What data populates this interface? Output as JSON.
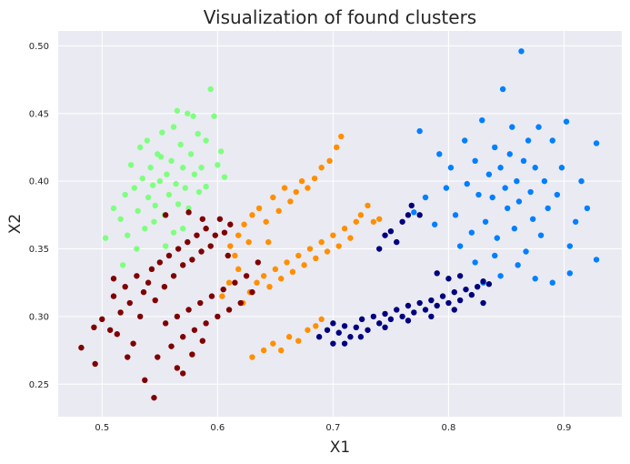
{
  "chart_data": {
    "type": "scatter",
    "title": "Visualization of found clusters",
    "xlabel": "X1",
    "ylabel": "X2",
    "xlim": [
      0.462,
      0.95
    ],
    "ylim": [
      0.226,
      0.511
    ],
    "xticks": [
      0.5,
      0.6,
      0.7,
      0.8,
      0.9
    ],
    "yticks": [
      0.25,
      0.3,
      0.35,
      0.4,
      0.45,
      0.5
    ],
    "grid": true,
    "background": "#eaeaf2",
    "grid_color": "#ffffff",
    "series": [
      {
        "color": "#7fff7f",
        "points": [
          [
            0.503,
            0.358
          ],
          [
            0.51,
            0.38
          ],
          [
            0.516,
            0.372
          ],
          [
            0.52,
            0.39
          ],
          [
            0.522,
            0.36
          ],
          [
            0.525,
            0.412
          ],
          [
            0.528,
            0.395
          ],
          [
            0.531,
            0.378
          ],
          [
            0.533,
            0.425
          ],
          [
            0.535,
            0.402
          ],
          [
            0.537,
            0.365
          ],
          [
            0.54,
            0.388
          ],
          [
            0.542,
            0.41
          ],
          [
            0.544,
            0.397
          ],
          [
            0.546,
            0.382
          ],
          [
            0.548,
            0.42
          ],
          [
            0.55,
            0.4
          ],
          [
            0.552,
            0.436
          ],
          [
            0.554,
            0.375
          ],
          [
            0.556,
            0.405
          ],
          [
            0.558,
            0.39
          ],
          [
            0.56,
            0.415
          ],
          [
            0.562,
            0.44
          ],
          [
            0.564,
            0.398
          ],
          [
            0.566,
            0.383
          ],
          [
            0.568,
            0.427
          ],
          [
            0.57,
            0.41
          ],
          [
            0.572,
            0.395
          ],
          [
            0.574,
            0.45
          ],
          [
            0.577,
            0.42
          ],
          [
            0.58,
            0.405
          ],
          [
            0.583,
            0.435
          ],
          [
            0.586,
            0.41
          ],
          [
            0.59,
            0.43
          ],
          [
            0.594,
            0.468
          ],
          [
            0.597,
            0.448
          ],
          [
            0.6,
            0.412
          ],
          [
            0.603,
            0.422
          ],
          [
            0.606,
            0.403
          ],
          [
            0.53,
            0.35
          ],
          [
            0.518,
            0.338
          ],
          [
            0.545,
            0.37
          ],
          [
            0.562,
            0.362
          ],
          [
            0.575,
            0.38
          ],
          [
            0.59,
            0.396
          ],
          [
            0.539,
            0.43
          ],
          [
            0.551,
            0.418
          ],
          [
            0.565,
            0.452
          ],
          [
            0.579,
            0.448
          ],
          [
            0.584,
            0.392
          ],
          [
            0.57,
            0.365
          ],
          [
            0.555,
            0.352
          ]
        ]
      },
      {
        "color": "#007fff",
        "points": [
          [
            0.78,
            0.388
          ],
          [
            0.788,
            0.368
          ],
          [
            0.792,
            0.42
          ],
          [
            0.798,
            0.395
          ],
          [
            0.802,
            0.41
          ],
          [
            0.806,
            0.375
          ],
          [
            0.81,
            0.352
          ],
          [
            0.814,
            0.43
          ],
          [
            0.816,
            0.398
          ],
          [
            0.82,
            0.362
          ],
          [
            0.823,
            0.415
          ],
          [
            0.826,
            0.39
          ],
          [
            0.829,
            0.445
          ],
          [
            0.832,
            0.37
          ],
          [
            0.835,
            0.405
          ],
          [
            0.838,
            0.388
          ],
          [
            0.84,
            0.425
          ],
          [
            0.842,
            0.358
          ],
          [
            0.845,
            0.41
          ],
          [
            0.847,
            0.468
          ],
          [
            0.849,
            0.395
          ],
          [
            0.851,
            0.38
          ],
          [
            0.853,
            0.42
          ],
          [
            0.855,
            0.44
          ],
          [
            0.857,
            0.365
          ],
          [
            0.859,
            0.4
          ],
          [
            0.861,
            0.385
          ],
          [
            0.863,
            0.496
          ],
          [
            0.865,
            0.415
          ],
          [
            0.867,
            0.348
          ],
          [
            0.869,
            0.43
          ],
          [
            0.871,
            0.392
          ],
          [
            0.873,
            0.372
          ],
          [
            0.875,
            0.41
          ],
          [
            0.878,
            0.44
          ],
          [
            0.88,
            0.36
          ],
          [
            0.883,
            0.4
          ],
          [
            0.886,
            0.38
          ],
          [
            0.89,
            0.43
          ],
          [
            0.894,
            0.39
          ],
          [
            0.898,
            0.41
          ],
          [
            0.902,
            0.444
          ],
          [
            0.905,
            0.352
          ],
          [
            0.91,
            0.37
          ],
          [
            0.915,
            0.4
          ],
          [
            0.92,
            0.38
          ],
          [
            0.928,
            0.428
          ],
          [
            0.928,
            0.342
          ],
          [
            0.77,
            0.377
          ],
          [
            0.775,
            0.437
          ],
          [
            0.83,
            0.325
          ],
          [
            0.845,
            0.33
          ],
          [
            0.86,
            0.338
          ],
          [
            0.875,
            0.328
          ],
          [
            0.89,
            0.325
          ],
          [
            0.905,
            0.332
          ],
          [
            0.84,
            0.345
          ],
          [
            0.823,
            0.34
          ]
        ]
      },
      {
        "color": "#ff8f00",
        "points": [
          [
            0.63,
            0.27
          ],
          [
            0.64,
            0.275
          ],
          [
            0.648,
            0.28
          ],
          [
            0.655,
            0.275
          ],
          [
            0.662,
            0.285
          ],
          [
            0.67,
            0.282
          ],
          [
            0.678,
            0.29
          ],
          [
            0.685,
            0.293
          ],
          [
            0.69,
            0.298
          ],
          [
            0.622,
            0.31
          ],
          [
            0.628,
            0.318
          ],
          [
            0.634,
            0.325
          ],
          [
            0.64,
            0.33
          ],
          [
            0.645,
            0.322
          ],
          [
            0.65,
            0.335
          ],
          [
            0.655,
            0.328
          ],
          [
            0.66,
            0.34
          ],
          [
            0.665,
            0.333
          ],
          [
            0.67,
            0.345
          ],
          [
            0.675,
            0.338
          ],
          [
            0.68,
            0.35
          ],
          [
            0.685,
            0.343
          ],
          [
            0.69,
            0.355
          ],
          [
            0.695,
            0.348
          ],
          [
            0.7,
            0.36
          ],
          [
            0.705,
            0.352
          ],
          [
            0.71,
            0.365
          ],
          [
            0.715,
            0.358
          ],
          [
            0.72,
            0.37
          ],
          [
            0.724,
            0.375
          ],
          [
            0.73,
            0.382
          ],
          [
            0.735,
            0.37
          ],
          [
            0.74,
            0.372
          ],
          [
            0.61,
            0.325
          ],
          [
            0.618,
            0.335
          ],
          [
            0.604,
            0.315
          ],
          [
            0.615,
            0.345
          ],
          [
            0.618,
            0.36
          ],
          [
            0.623,
            0.368
          ],
          [
            0.63,
            0.375
          ],
          [
            0.636,
            0.38
          ],
          [
            0.642,
            0.37
          ],
          [
            0.648,
            0.388
          ],
          [
            0.653,
            0.378
          ],
          [
            0.658,
            0.395
          ],
          [
            0.663,
            0.385
          ],
          [
            0.668,
            0.392
          ],
          [
            0.673,
            0.4
          ],
          [
            0.678,
            0.395
          ],
          [
            0.684,
            0.402
          ],
          [
            0.69,
            0.41
          ],
          [
            0.697,
            0.415
          ],
          [
            0.703,
            0.425
          ],
          [
            0.707,
            0.433
          ],
          [
            0.611,
            0.352
          ],
          [
            0.627,
            0.355
          ],
          [
            0.644,
            0.355
          ]
        ]
      },
      {
        "color": "#7f0000",
        "points": [
          [
            0.482,
            0.277
          ],
          [
            0.493,
            0.292
          ],
          [
            0.494,
            0.265
          ],
          [
            0.5,
            0.298
          ],
          [
            0.507,
            0.29
          ],
          [
            0.51,
            0.315
          ],
          [
            0.513,
            0.287
          ],
          [
            0.516,
            0.303
          ],
          [
            0.52,
            0.322
          ],
          [
            0.524,
            0.31
          ],
          [
            0.527,
            0.28
          ],
          [
            0.53,
            0.33
          ],
          [
            0.533,
            0.3
          ],
          [
            0.536,
            0.318
          ],
          [
            0.54,
            0.325
          ],
          [
            0.543,
            0.335
          ],
          [
            0.546,
            0.312
          ],
          [
            0.55,
            0.34
          ],
          [
            0.554,
            0.322
          ],
          [
            0.558,
            0.345
          ],
          [
            0.562,
            0.33
          ],
          [
            0.566,
            0.35
          ],
          [
            0.57,
            0.338
          ],
          [
            0.574,
            0.355
          ],
          [
            0.578,
            0.342
          ],
          [
            0.582,
            0.36
          ],
          [
            0.586,
            0.348
          ],
          [
            0.59,
            0.365
          ],
          [
            0.594,
            0.352
          ],
          [
            0.598,
            0.36
          ],
          [
            0.602,
            0.372
          ],
          [
            0.606,
            0.362
          ],
          [
            0.51,
            0.328
          ],
          [
            0.522,
            0.27
          ],
          [
            0.537,
            0.253
          ],
          [
            0.545,
            0.24
          ],
          [
            0.548,
            0.27
          ],
          [
            0.555,
            0.295
          ],
          [
            0.56,
            0.278
          ],
          [
            0.565,
            0.3
          ],
          [
            0.57,
            0.285
          ],
          [
            0.575,
            0.305
          ],
          [
            0.58,
            0.29
          ],
          [
            0.585,
            0.31
          ],
          [
            0.59,
            0.295
          ],
          [
            0.595,
            0.315
          ],
          [
            0.6,
            0.3
          ],
          [
            0.605,
            0.32
          ],
          [
            0.61,
            0.305
          ],
          [
            0.615,
            0.325
          ],
          [
            0.62,
            0.31
          ],
          [
            0.625,
            0.33
          ],
          [
            0.63,
            0.318
          ],
          [
            0.635,
            0.34
          ],
          [
            0.565,
            0.262
          ],
          [
            0.57,
            0.258
          ],
          [
            0.578,
            0.272
          ],
          [
            0.587,
            0.282
          ],
          [
            0.609,
            0.345
          ],
          [
            0.611,
            0.368
          ],
          [
            0.555,
            0.375
          ],
          [
            0.575,
            0.377
          ],
          [
            0.587,
            0.372
          ]
        ]
      },
      {
        "color": "#00007f",
        "points": [
          [
            0.688,
            0.285
          ],
          [
            0.695,
            0.29
          ],
          [
            0.7,
            0.295
          ],
          [
            0.705,
            0.288
          ],
          [
            0.71,
            0.293
          ],
          [
            0.715,
            0.285
          ],
          [
            0.72,
            0.292
          ],
          [
            0.725,
            0.298
          ],
          [
            0.73,
            0.29
          ],
          [
            0.735,
            0.3
          ],
          [
            0.74,
            0.295
          ],
          [
            0.745,
            0.302
          ],
          [
            0.75,
            0.298
          ],
          [
            0.755,
            0.305
          ],
          [
            0.76,
            0.3
          ],
          [
            0.765,
            0.308
          ],
          [
            0.77,
            0.303
          ],
          [
            0.775,
            0.31
          ],
          [
            0.78,
            0.305
          ],
          [
            0.785,
            0.312
          ],
          [
            0.79,
            0.308
          ],
          [
            0.795,
            0.315
          ],
          [
            0.8,
            0.31
          ],
          [
            0.805,
            0.318
          ],
          [
            0.81,
            0.312
          ],
          [
            0.815,
            0.32
          ],
          [
            0.82,
            0.316
          ],
          [
            0.825,
            0.322
          ],
          [
            0.83,
            0.326
          ],
          [
            0.835,
            0.324
          ],
          [
            0.7,
            0.28
          ],
          [
            0.71,
            0.28
          ],
          [
            0.724,
            0.285
          ],
          [
            0.745,
            0.292
          ],
          [
            0.765,
            0.297
          ],
          [
            0.785,
            0.3
          ],
          [
            0.805,
            0.305
          ],
          [
            0.83,
            0.31
          ],
          [
            0.74,
            0.35
          ],
          [
            0.745,
            0.36
          ],
          [
            0.75,
            0.363
          ],
          [
            0.755,
            0.355
          ],
          [
            0.76,
            0.37
          ],
          [
            0.765,
            0.375
          ],
          [
            0.768,
            0.382
          ],
          [
            0.775,
            0.375
          ],
          [
            0.79,
            0.332
          ],
          [
            0.81,
            0.33
          ],
          [
            0.8,
            0.328
          ]
        ]
      }
    ]
  }
}
